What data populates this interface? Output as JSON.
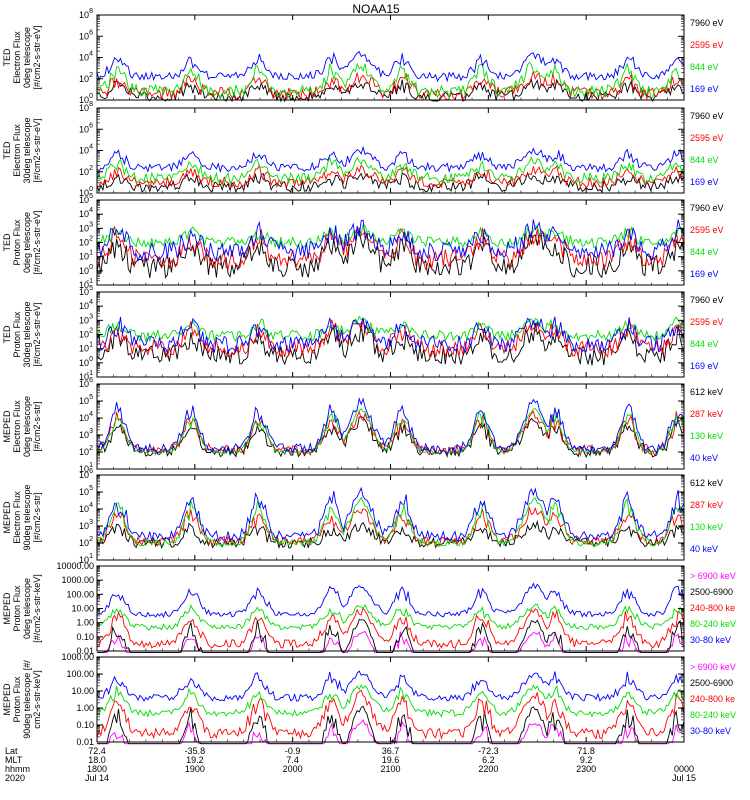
{
  "chart_data": {
    "type": "line",
    "title": "NOAA15",
    "x_ticks": [
      {
        "lat": "72.4",
        "mlt": "18.0",
        "hhmm": "1800",
        "date": "2020 Jul 14"
      },
      {
        "lat": "-35.8",
        "mlt": "19.2",
        "hhmm": "1900",
        "date": ""
      },
      {
        "lat": "-0.9",
        "mlt": "7.4",
        "hhmm": "2000",
        "date": ""
      },
      {
        "lat": "36.7",
        "mlt": "19.6",
        "hhmm": "2100",
        "date": ""
      },
      {
        "lat": "-72.3",
        "mlt": "6.2",
        "hhmm": "2200",
        "date": ""
      },
      {
        "lat": "71.8",
        "mlt": "9.2",
        "hhmm": "2300",
        "date": ""
      },
      {
        "lat": "",
        "mlt": "",
        "hhmm": "0000",
        "date": "Jul 15"
      }
    ],
    "x_row_labels": [
      "Lat",
      "MLT",
      "hhmm",
      "2020"
    ],
    "panels": [
      {
        "ylabel": [
          "TED",
          "Electron Flux",
          "0deg telescope",
          "[#/cm2-s-str-eV]"
        ],
        "log": true,
        "ylim_exp": [
          0,
          8
        ],
        "tick_step": 2,
        "series": [
          {
            "name": "7960 eV",
            "color": "#000000",
            "base": 0.3,
            "peak": 1.6,
            "noise": 0.5
          },
          {
            "name": "2595 eV",
            "color": "#ff0000",
            "base": 0.6,
            "peak": 2.2,
            "noise": 0.6
          },
          {
            "name": "844 eV",
            "color": "#00dd00",
            "base": 0.8,
            "peak": 3.2,
            "noise": 0.6
          },
          {
            "name": "169 eV",
            "color": "#0000ff",
            "base": 2.2,
            "peak": 4.2,
            "noise": 0.4
          }
        ]
      },
      {
        "ylabel": [
          "TED",
          "Electron Flux",
          "30deg telescope",
          "[#/cm2-s-str-eV]"
        ],
        "log": true,
        "ylim_exp": [
          0,
          8
        ],
        "tick_step": 2,
        "series": [
          {
            "name": "7960 eV",
            "color": "#000000",
            "base": 0.6,
            "peak": 1.6,
            "noise": 0.5
          },
          {
            "name": "2595 eV",
            "color": "#ff0000",
            "base": 1.0,
            "peak": 2.2,
            "noise": 0.5
          },
          {
            "name": "844 eV",
            "color": "#00dd00",
            "base": 1.4,
            "peak": 3.0,
            "noise": 0.5
          },
          {
            "name": "169 eV",
            "color": "#0000ff",
            "base": 2.4,
            "peak": 4.0,
            "noise": 0.4
          }
        ]
      },
      {
        "ylabel": [
          "TED",
          "Proton Flux",
          "0deg telescope",
          "[#/cm2-s-str-eV]"
        ],
        "log": true,
        "ylim_exp": [
          -1,
          5
        ],
        "tick_step": 1,
        "series": [
          {
            "name": "7960 eV",
            "color": "#000000",
            "base": 0.3,
            "peak": 2.2,
            "noise": 0.8
          },
          {
            "name": "2595 eV",
            "color": "#ff0000",
            "base": 0.8,
            "peak": 2.6,
            "noise": 0.7
          },
          {
            "name": "844 eV",
            "color": "#00dd00",
            "base": 2.0,
            "peak": 2.9,
            "noise": 0.4
          },
          {
            "name": "169 eV",
            "color": "#0000ff",
            "base": 1.4,
            "peak": 3.0,
            "noise": 0.7
          }
        ]
      },
      {
        "ylabel": [
          "TED",
          "Proton Flux",
          "30deg telescope",
          "[#/cm2-s-str-eV]"
        ],
        "log": true,
        "ylim_exp": [
          -1,
          5
        ],
        "tick_step": 1,
        "series": [
          {
            "name": "7960 eV",
            "color": "#000000",
            "base": 0.5,
            "peak": 2.2,
            "noise": 0.7
          },
          {
            "name": "2595 eV",
            "color": "#ff0000",
            "base": 1.0,
            "peak": 2.6,
            "noise": 0.6
          },
          {
            "name": "844 eV",
            "color": "#00dd00",
            "base": 1.9,
            "peak": 2.9,
            "noise": 0.4
          },
          {
            "name": "169 eV",
            "color": "#0000ff",
            "base": 1.3,
            "peak": 3.0,
            "noise": 0.6
          }
        ]
      },
      {
        "ylabel": [
          "MEPED",
          "Electron Flux",
          "0deg telescope",
          "[#/cm2-s-str]"
        ],
        "log": true,
        "ylim_exp": [
          1,
          6
        ],
        "tick_step": 1,
        "series": [
          {
            "name": "612 keV",
            "color": "#000000",
            "base": 2.0,
            "peak": 3.8,
            "noise": 0.3
          },
          {
            "name": "287 keV",
            "color": "#ff0000",
            "base": 2.1,
            "peak": 4.2,
            "noise": 0.3
          },
          {
            "name": "130 keV",
            "color": "#00dd00",
            "base": 2.0,
            "peak": 4.5,
            "noise": 0.1
          },
          {
            "name": "40 keV",
            "color": "#0000ff",
            "base": 2.2,
            "peak": 4.9,
            "noise": 0.3
          }
        ]
      },
      {
        "ylabel": [
          "MEPED",
          "Electron Flux",
          "90deg telescope",
          "[#/cm2-s-str]"
        ],
        "log": true,
        "ylim_exp": [
          1,
          6
        ],
        "tick_step": 1,
        "series": [
          {
            "name": "612 keV",
            "color": "#000000",
            "base": 2.0,
            "peak": 3.0,
            "noise": 0.3
          },
          {
            "name": "287 keV",
            "color": "#ff0000",
            "base": 2.1,
            "peak": 4.0,
            "noise": 0.3
          },
          {
            "name": "130 keV",
            "color": "#00dd00",
            "base": 2.0,
            "peak": 4.5,
            "noise": 0.2
          },
          {
            "name": "40 keV",
            "color": "#0000ff",
            "base": 2.4,
            "peak": 5.0,
            "noise": 0.3
          }
        ]
      },
      {
        "ylabel": [
          "MEPED",
          "Proton Flux",
          "0deg telescope",
          "[#/cm2-s-str-keV]"
        ],
        "log": true,
        "ylim_exp": [
          -2,
          4
        ],
        "tick_step": 1,
        "tick_labels": [
          "0.01",
          "0.10",
          "1.00",
          "10.00",
          "100.00",
          "1000.00",
          "10000.00"
        ],
        "series": [
          {
            "name": "> 6900 keV",
            "color": "#ff00ff",
            "base": -3.0,
            "peak": -0.6,
            "noise": 0.2
          },
          {
            "name": "2500-6900",
            "color": "#000000",
            "base": -3.0,
            "peak": 0.2,
            "noise": 0.2
          },
          {
            "name": "240-800 ke",
            "color": "#ff0000",
            "base": -1.5,
            "peak": 0.8,
            "noise": 0.3
          },
          {
            "name": "80-240 keV",
            "color": "#00dd00",
            "base": -0.3,
            "peak": 1.2,
            "noise": 0.2
          },
          {
            "name": "30-80 keV",
            "color": "#0000ff",
            "base": 0.6,
            "peak": 2.6,
            "noise": 0.2
          }
        ]
      },
      {
        "ylabel": [
          "MEPED",
          "Proton Flux",
          "90deg telescope [#/",
          "cm2-s-str-keV]"
        ],
        "log": true,
        "ylim_exp": [
          -2,
          3
        ],
        "tick_step": 1,
        "tick_labels": [
          "0.01",
          "0.10",
          "1.00",
          "10.00",
          "100.00",
          "1000.00"
        ],
        "series": [
          {
            "name": "> 6900 keV",
            "color": "#ff00ff",
            "base": -3.0,
            "peak": -0.8,
            "noise": 0.2
          },
          {
            "name": "2500-6900",
            "color": "#000000",
            "base": -3.0,
            "peak": 0.0,
            "noise": 0.2
          },
          {
            "name": "240-800 ke",
            "color": "#ff0000",
            "base": -1.5,
            "peak": 0.8,
            "noise": 0.3
          },
          {
            "name": "80-240 keV",
            "color": "#00dd00",
            "base": -0.3,
            "peak": 1.2,
            "noise": 0.2
          },
          {
            "name": "30-80 keV",
            "color": "#0000ff",
            "base": 0.6,
            "peak": 2.0,
            "noise": 0.2
          }
        ]
      }
    ]
  }
}
